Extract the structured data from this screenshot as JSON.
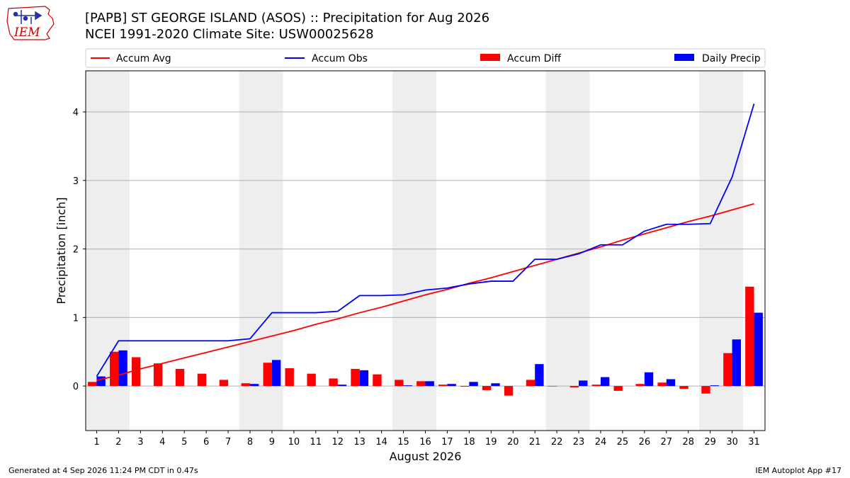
{
  "header": {
    "title_line1": "[PAPB] ST GEORGE ISLAND (ASOS) :: Precipitation for Aug 2026",
    "title_line2": "NCEI 1991-2020 Climate Site: USW00025628",
    "logo_text": "IEM"
  },
  "footer": {
    "generated": "Generated at 4 Sep 2026 11:24 PM CDT in 0.47s",
    "app": "IEM Autoplot App #17"
  },
  "colors": {
    "accum_avg": "#ff0000",
    "accum_obs": "#0000ff",
    "accum_diff": "#ff0000",
    "daily_precip": "#0000ff",
    "weekend_shade": "#eeeeee",
    "grid": "#b0b0b0",
    "logo": "#cc0000"
  },
  "chart_data": {
    "type": "bar",
    "xlabel": "August 2026",
    "ylabel": "Precipitation [inch]",
    "xlim": [
      0.5,
      31.5
    ],
    "ylim": [
      -0.65,
      4.6
    ],
    "y_ticks": [
      0,
      1,
      2,
      3,
      4
    ],
    "y_grid": true,
    "legend_position": "top",
    "legend": [
      "Accum Avg",
      "Accum Obs",
      "Accum Diff",
      "Daily Precip"
    ],
    "shaded_days": [
      [
        1,
        2
      ],
      [
        8,
        9
      ],
      [
        15,
        16
      ],
      [
        22,
        23
      ],
      [
        29,
        30
      ]
    ],
    "days": [
      1,
      2,
      3,
      4,
      5,
      6,
      7,
      8,
      9,
      10,
      11,
      12,
      13,
      14,
      15,
      16,
      17,
      18,
      19,
      20,
      21,
      22,
      23,
      24,
      25,
      26,
      27,
      28,
      29,
      30,
      31
    ],
    "series": [
      {
        "name": "Accum Avg",
        "kind": "line",
        "values": [
          0.08,
          0.16,
          0.25,
          0.33,
          0.41,
          0.49,
          0.57,
          0.65,
          0.73,
          0.81,
          0.9,
          0.98,
          1.07,
          1.15,
          1.24,
          1.33,
          1.41,
          1.5,
          1.58,
          1.67,
          1.76,
          1.85,
          1.94,
          2.03,
          2.13,
          2.22,
          2.31,
          2.4,
          2.48,
          2.57,
          2.66
        ]
      },
      {
        "name": "Accum Obs",
        "kind": "line",
        "values": [
          0.14,
          0.66,
          0.66,
          0.66,
          0.66,
          0.66,
          0.66,
          0.69,
          1.07,
          1.07,
          1.07,
          1.09,
          1.32,
          1.32,
          1.33,
          1.4,
          1.43,
          1.49,
          1.53,
          1.53,
          1.85,
          1.85,
          1.93,
          2.06,
          2.06,
          2.26,
          2.36,
          2.36,
          2.37,
          3.05,
          4.12
        ]
      },
      {
        "name": "Accum Diff",
        "kind": "bar",
        "values": [
          0.06,
          0.5,
          0.42,
          0.33,
          0.25,
          0.18,
          0.09,
          0.04,
          0.34,
          0.26,
          0.18,
          0.11,
          0.25,
          0.17,
          0.09,
          0.07,
          0.02,
          -0.01,
          -0.06,
          -0.14,
          0.09,
          0.0,
          -0.02,
          0.02,
          -0.07,
          0.03,
          0.05,
          -0.04,
          -0.11,
          0.48,
          1.45
        ]
      },
      {
        "name": "Daily Precip",
        "kind": "bar",
        "values": [
          0.14,
          0.52,
          0.0,
          0.0,
          0.0,
          0.0,
          0.0,
          0.03,
          0.38,
          0.0,
          0.0,
          0.02,
          0.23,
          0.0,
          0.01,
          0.07,
          0.03,
          0.06,
          0.04,
          0.0,
          0.32,
          0.0,
          0.08,
          0.13,
          0.0,
          0.2,
          0.1,
          0.0,
          0.01,
          0.68,
          1.07
        ]
      }
    ]
  }
}
